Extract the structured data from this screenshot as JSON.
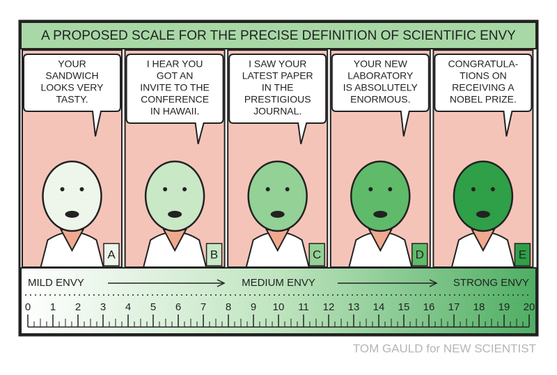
{
  "title": "A PROPOSED SCALE FOR THE PRECISE DEFINITION OF SCIENTIFIC ENVY",
  "panels": [
    {
      "speech": [
        "YOUR",
        "SANDWICH",
        "LOOKS VERY",
        "TASTY."
      ],
      "letter": "A"
    },
    {
      "speech": [
        "I HEAR YOU",
        "GOT AN",
        "INVITE TO THE",
        "CONFERENCE",
        "IN HAWAII."
      ],
      "letter": "B"
    },
    {
      "speech": [
        "I SAW YOUR",
        "LATEST PAPER",
        "IN THE",
        "PRESTIGIOUS",
        "JOURNAL."
      ],
      "letter": "C"
    },
    {
      "speech": [
        "YOUR NEW",
        "LABORATORY",
        "IS ABSOLUTELY",
        "ENORMOUS."
      ],
      "letter": "D"
    },
    {
      "speech": [
        "CONGRATULA-",
        "TIONS ON",
        "RECEIVING A",
        "NOBEL PRIZE."
      ],
      "letter": "E"
    }
  ],
  "scale": {
    "low": "MILD ENVY",
    "mid": "MEDIUM ENVY",
    "high": "STRONG ENVY",
    "ticks": [
      0,
      1,
      2,
      3,
      4,
      5,
      6,
      7,
      8,
      9,
      10,
      11,
      12,
      13,
      14,
      15,
      16,
      17,
      18,
      19,
      20
    ]
  },
  "credit": "TOM GAULD for NEW SCIENTIST"
}
